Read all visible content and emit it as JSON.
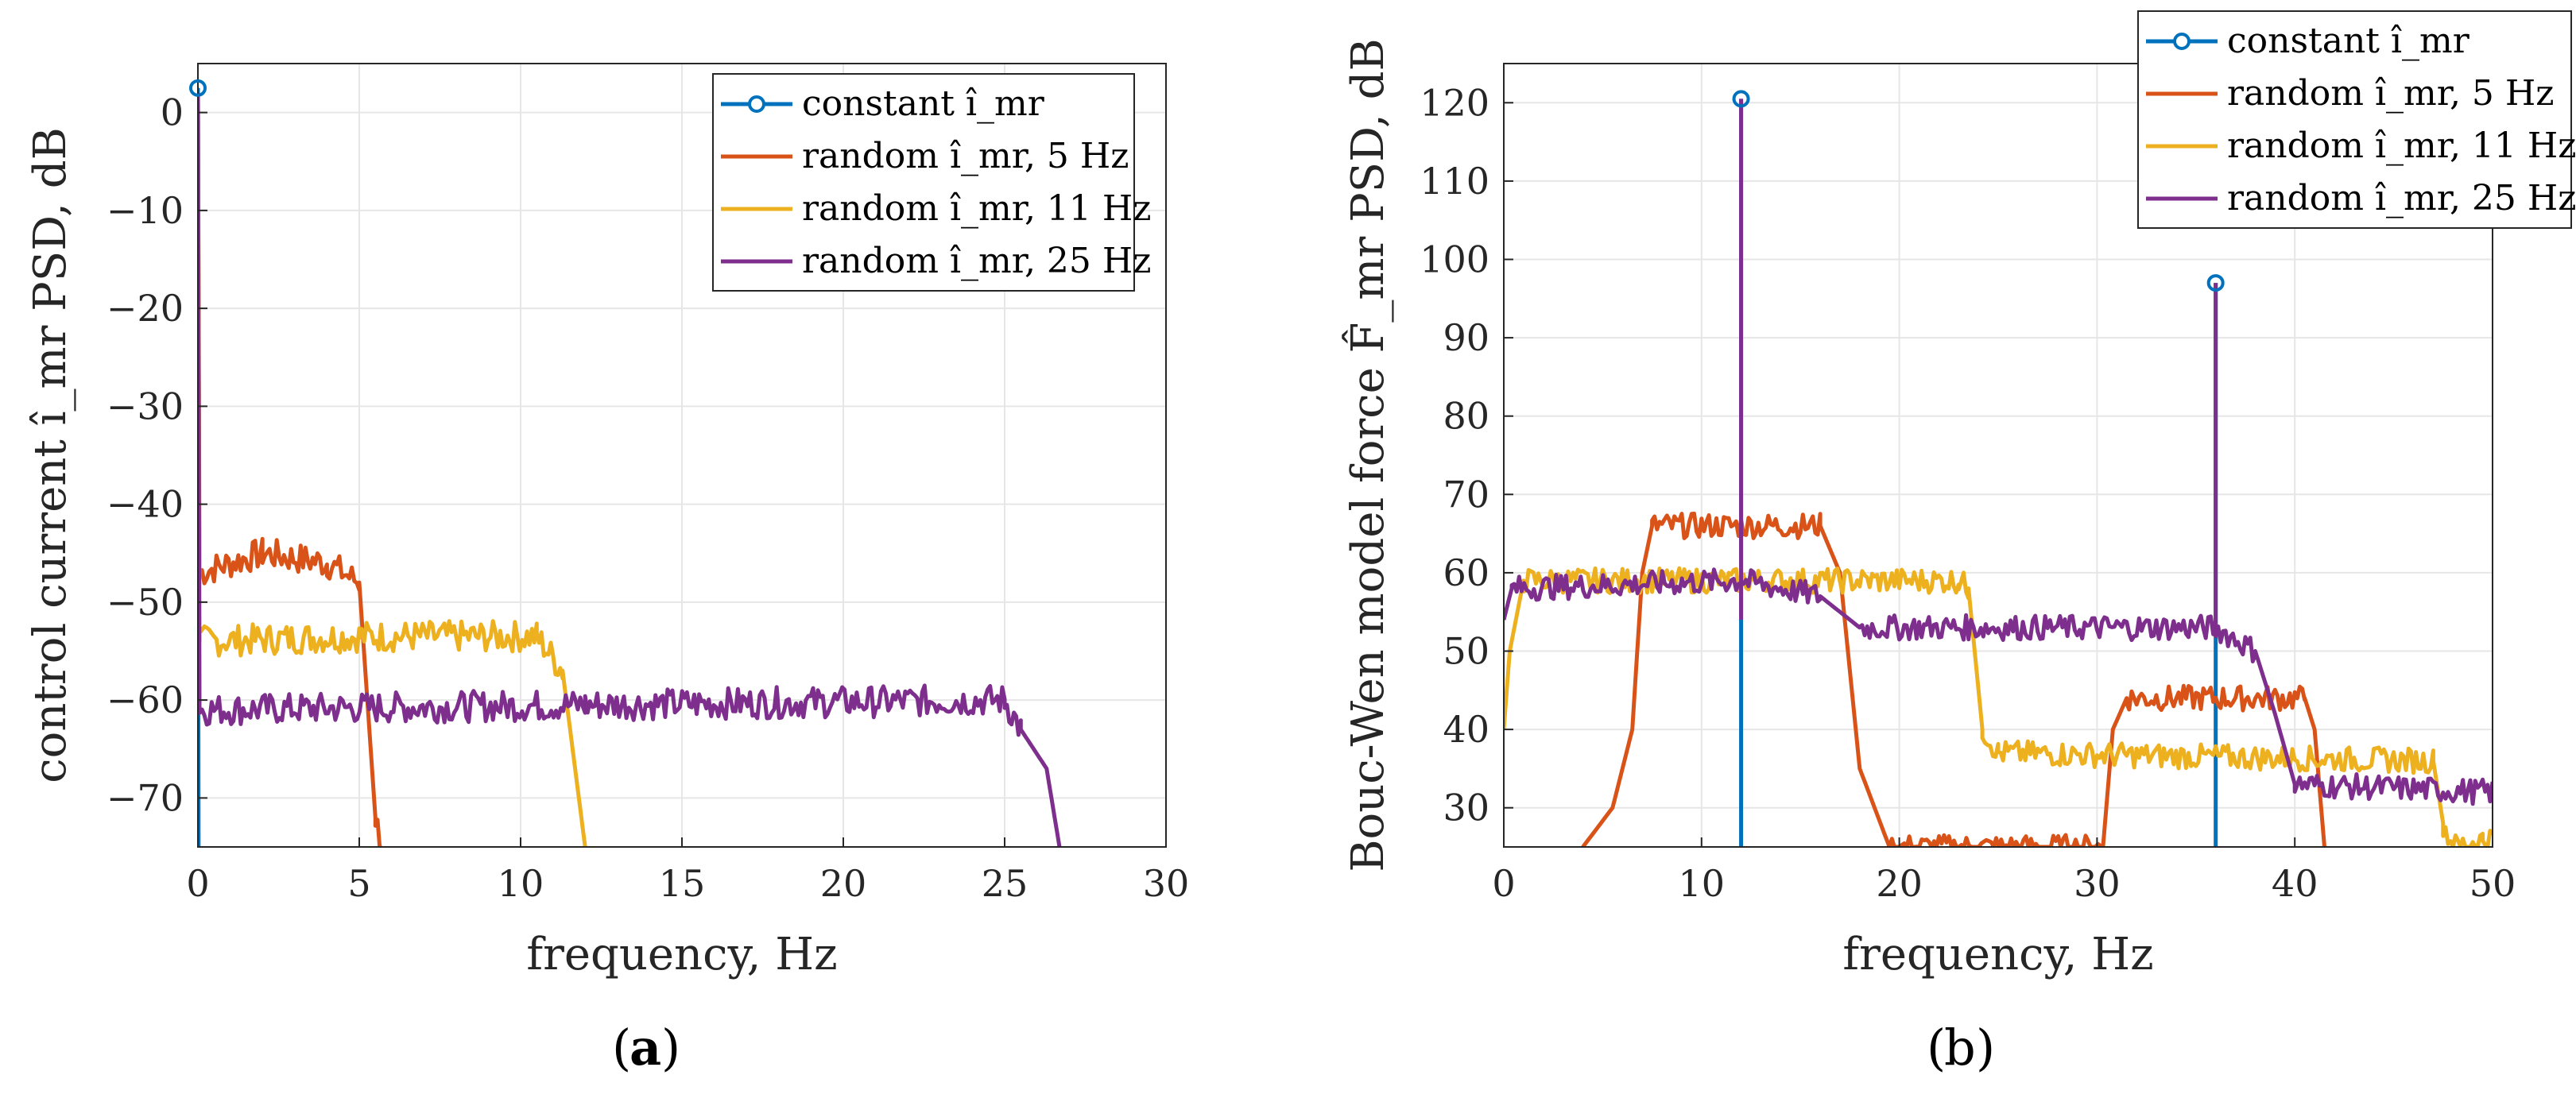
{
  "chart_data": [
    {
      "type": "line",
      "panel_label": "a",
      "xlabel": "frequency, Hz",
      "ylabel": "control current î_mr PSD, dB",
      "xlim": [
        0,
        30
      ],
      "ylim": [
        -75,
        5
      ],
      "xticks": [
        0,
        5,
        10,
        15,
        20,
        25,
        30
      ],
      "yticks": [
        0,
        -10,
        -20,
        -30,
        -40,
        -50,
        -60,
        -70
      ],
      "grid": true,
      "legend_position": "top-right",
      "series": [
        {
          "name": "constant î_mr",
          "color": "#0072BD",
          "marker": "circle",
          "points": [
            [
              0,
              2.5
            ],
            [
              0.01,
              -55
            ],
            [
              0.02,
              -75
            ]
          ]
        },
        {
          "name": "random î_mr, 5 Hz",
          "color": "#D95319",
          "level": -47,
          "ripple": 1.5,
          "points": [
            [
              0,
              2
            ],
            [
              0.05,
              -47
            ],
            [
              2,
              -45
            ],
            [
              4,
              -46
            ],
            [
              5,
              -48
            ],
            [
              5.5,
              -72
            ],
            [
              5.7,
              -75
            ]
          ]
        },
        {
          "name": "random î_mr, 11 Hz",
          "color": "#EDB120",
          "level": -54,
          "ripple": 1.2,
          "points": [
            [
              0,
              2
            ],
            [
              0.05,
              -54
            ],
            [
              5,
              -53.5
            ],
            [
              10.5,
              -53.5
            ],
            [
              11.3,
              -57
            ],
            [
              12,
              -75
            ]
          ]
        },
        {
          "name": "random î_mr, 25 Hz",
          "color": "#7E2F8E",
          "level": -61,
          "ripple": 1.2,
          "points": [
            [
              0,
              2
            ],
            [
              0.05,
              -61
            ],
            [
              12,
              -60.5
            ],
            [
              25,
              -60
            ],
            [
              25.5,
              -63
            ],
            [
              26.3,
              -67
            ],
            [
              26.7,
              -75
            ]
          ]
        }
      ]
    },
    {
      "type": "line",
      "panel_label": "b",
      "xlabel": "frequency, Hz",
      "ylabel": "Bouc-Wen model force F̂_mr PSD, dB",
      "xlim": [
        0,
        50
      ],
      "ylim": [
        25,
        125
      ],
      "xticks": [
        0,
        10,
        20,
        30,
        40,
        50
      ],
      "yticks": [
        30,
        40,
        50,
        60,
        70,
        80,
        90,
        100,
        110,
        120
      ],
      "grid": true,
      "legend_position": "top-right",
      "series": [
        {
          "name": "constant î_mr",
          "color": "#0072BD",
          "marker": "circle",
          "stems": [
            [
              12,
              120.5
            ],
            [
              36,
              97
            ]
          ]
        },
        {
          "name": "random î_mr, 5 Hz",
          "color": "#D95319",
          "points": [
            [
              4,
              25
            ],
            [
              5.5,
              30
            ],
            [
              6.5,
              40
            ],
            [
              7,
              60
            ],
            [
              7.5,
              66
            ],
            [
              16,
              66
            ],
            [
              17,
              60
            ],
            [
              18,
              35
            ],
            [
              19.5,
              25
            ],
            [
              30.3,
              25
            ],
            [
              30.8,
              40
            ],
            [
              31.5,
              44
            ],
            [
              40.5,
              44
            ],
            [
              41,
              40
            ],
            [
              41.5,
              25
            ]
          ]
        },
        {
          "name": "random î_mr, 11 Hz",
          "color": "#EDB120",
          "points": [
            [
              0,
              40
            ],
            [
              0.3,
              50
            ],
            [
              1,
              59
            ],
            [
              23,
              59
            ],
            [
              23.5,
              58
            ],
            [
              24.2,
              40
            ],
            [
              25,
              37
            ],
            [
              47,
              36
            ],
            [
              47.5,
              28
            ],
            [
              48,
              25
            ],
            [
              49.5,
              26
            ],
            [
              50,
              26
            ]
          ]
        },
        {
          "name": "random î_mr, 25 Hz",
          "color": "#7E2F8E",
          "points": [
            [
              0,
              54
            ],
            [
              0.4,
              58
            ],
            [
              12,
              59
            ],
            [
              16,
              57
            ],
            [
              18,
              53
            ],
            [
              36,
              53
            ],
            [
              38,
              50
            ],
            [
              39,
              42
            ],
            [
              40,
              33
            ],
            [
              50,
              32
            ]
          ],
          "spikes": [
            [
              12,
              120.5
            ],
            [
              36,
              97
            ]
          ]
        }
      ]
    }
  ]
}
